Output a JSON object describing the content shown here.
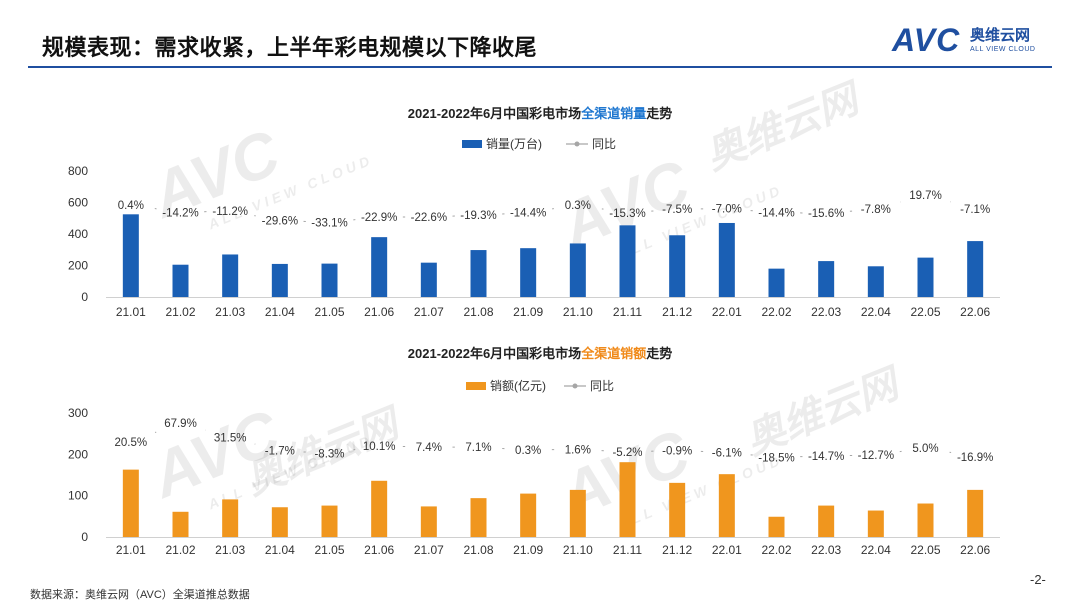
{
  "header": {
    "title": "规模表现：需求收紧，上半年彩电规模以下降收尾",
    "logo_latin": "AVC",
    "logo_cn": "奥维云网",
    "logo_en": "ALL VIEW CLOUD"
  },
  "watermark": {
    "latin": "AVC",
    "cn": "奥维云网",
    "en": "ALL VIEW CLOUD"
  },
  "colors": {
    "brand": "#1f4fa0",
    "sales_bar": "#1a5fb4",
    "revenue_bar": "#f0961e",
    "line": "#a6a6a6"
  },
  "footer": {
    "source": "数据来源：奥维云网（AVC）全渠道推总数据",
    "page": "-2-"
  },
  "chart_data": [
    {
      "type": "bar",
      "title_prefix": "2021-2022年6月中国彩电市场",
      "title_highlight": "全渠道销量",
      "title_suffix": "走势",
      "categories": [
        "21.01",
        "21.02",
        "21.03",
        "21.04",
        "21.05",
        "21.06",
        "21.07",
        "21.08",
        "21.09",
        "21.10",
        "21.11",
        "21.12",
        "22.01",
        "22.02",
        "22.03",
        "22.04",
        "22.05",
        "22.06"
      ],
      "series": [
        {
          "name": "销量(万台)",
          "kind": "bar",
          "values": [
            525,
            205,
            270,
            210,
            212,
            380,
            218,
            298,
            310,
            340,
            455,
            392,
            470,
            180,
            228,
            195,
            250,
            355
          ]
        },
        {
          "name": "同比",
          "kind": "line",
          "values": [
            0.4,
            -14.2,
            -11.2,
            -29.6,
            -33.1,
            -22.9,
            -22.6,
            -19.3,
            -14.4,
            0.3,
            -15.3,
            -7.5,
            -7.0,
            -14.4,
            -15.6,
            -7.8,
            19.7,
            -7.1
          ],
          "labels": [
            "0.4%",
            "-14.2%",
            "-11.2%",
            "-29.6%",
            "-33.1%",
            "-22.9%",
            "-22.6%",
            "-19.3%",
            "-14.4%",
            "0.3%",
            "-15.3%",
            "-7.5%",
            "-7.0%",
            "-14.4%",
            "-15.6%",
            "-7.8%",
            "19.7%",
            "-7.1%"
          ]
        }
      ],
      "ylim": [
        0,
        800
      ],
      "yticks": [
        "0",
        "200",
        "400",
        "600",
        "800"
      ],
      "legend_position": "top-center"
    },
    {
      "type": "bar",
      "title_prefix": "2021-2022年6月中国彩电市场",
      "title_highlight": "全渠道销额",
      "title_suffix": "走势",
      "categories": [
        "21.01",
        "21.02",
        "21.03",
        "21.04",
        "21.05",
        "21.06",
        "21.07",
        "21.08",
        "21.09",
        "21.10",
        "21.11",
        "21.12",
        "22.01",
        "22.02",
        "22.03",
        "22.04",
        "22.05",
        "22.06"
      ],
      "series": [
        {
          "name": "销额(亿元)",
          "kind": "bar",
          "values": [
            163,
            61,
            91,
            72,
            76,
            136,
            74,
            94,
            105,
            114,
            181,
            131,
            152,
            49,
            76,
            64,
            81,
            114
          ]
        },
        {
          "name": "同比",
          "kind": "line",
          "values": [
            20.5,
            67.9,
            31.5,
            -1.7,
            -8.3,
            10.1,
            7.4,
            7.1,
            0.3,
            1.6,
            -5.2,
            -0.9,
            -6.1,
            -18.5,
            -14.7,
            -12.7,
            5.0,
            -16.9
          ],
          "labels": [
            "20.5%",
            "67.9%",
            "31.5%",
            "-1.7%",
            "-8.3%",
            "10.1%",
            "7.4%",
            "7.1%",
            "0.3%",
            "1.6%",
            "-5.2%",
            "-0.9%",
            "-6.1%",
            "-18.5%",
            "-14.7%",
            "-12.7%",
            "5.0%",
            "-16.9%"
          ]
        }
      ],
      "ylim": [
        0,
        300
      ],
      "yticks": [
        "0",
        "100",
        "200",
        "300"
      ],
      "legend_position": "top-center"
    }
  ]
}
